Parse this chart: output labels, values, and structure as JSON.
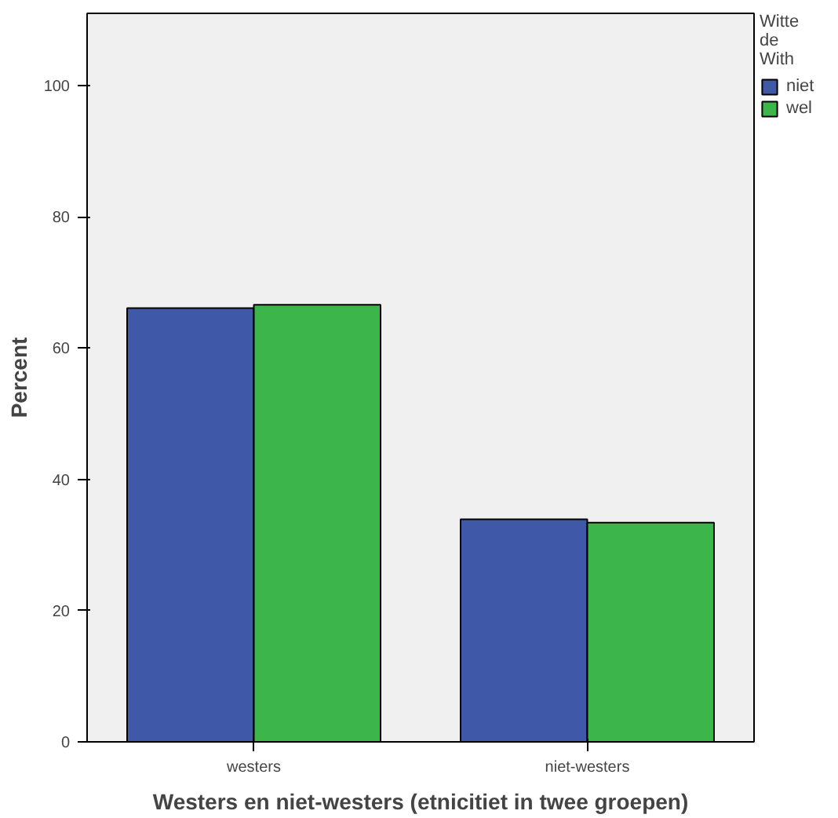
{
  "chart_data": {
    "type": "bar",
    "xlabel": "Westers en niet-westers (etnicitiet in twee groepen)",
    "ylabel": "Percent",
    "legend_title": "Witte de With",
    "categories": [
      "westers",
      "niet-westers"
    ],
    "series": [
      {
        "name": "niet",
        "color": "#3f58a8",
        "values": [
          66.1,
          33.9
        ]
      },
      {
        "name": "wel",
        "color": "#3cb54a",
        "values": [
          66.6,
          33.4
        ]
      }
    ],
    "ylim": [
      0,
      111
    ],
    "yticks": [
      0,
      20,
      40,
      60,
      80,
      100
    ],
    "grid": false,
    "legend": "right"
  }
}
